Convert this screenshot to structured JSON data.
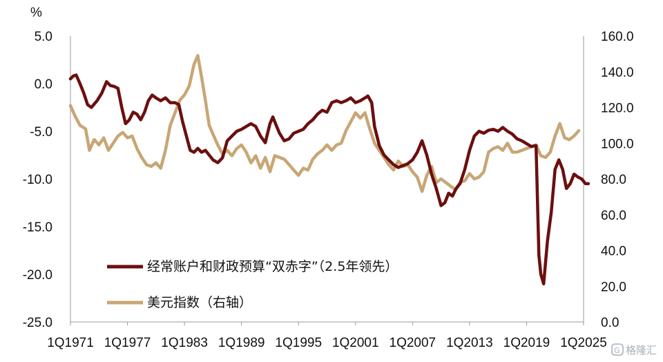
{
  "chart_data": {
    "type": "line",
    "y_unit_label": "%",
    "ylim_left": [
      -25,
      5
    ],
    "ylim_right": [
      0,
      160
    ],
    "yticks_left": [
      "5.0",
      "0.0",
      "-5.0",
      "-10.0",
      "-15.0",
      "-20.0",
      "-25.0"
    ],
    "yticks_right": [
      "160.0",
      "140.0",
      "120.0",
      "100.0",
      "80.0",
      "60.0",
      "40.0",
      "20.0",
      "0.0"
    ],
    "xlim": [
      1971.0,
      2025.0
    ],
    "xtick_labels": [
      "1Q1971",
      "1Q1977",
      "1Q1983",
      "1Q1989",
      "1Q1995",
      "1Q2001",
      "1Q2007",
      "1Q2013",
      "1Q2019",
      "1Q2025"
    ],
    "xtick_values": [
      1971,
      1977,
      1983,
      1989,
      1995,
      2001,
      2007,
      2013,
      2019,
      2025
    ],
    "legend_position": "lower-center",
    "grid": false,
    "series": [
      {
        "name": "经常账户和财政预算“双赤字”（2.5年领先）",
        "axis": "left",
        "color": "#6b0f0f",
        "x": [
          1971.0,
          1971.3,
          1971.6,
          1972.0,
          1972.4,
          1972.8,
          1973.2,
          1973.8,
          1974.3,
          1974.8,
          1975.2,
          1975.6,
          1976.0,
          1976.4,
          1976.8,
          1977.2,
          1977.6,
          1978.0,
          1978.4,
          1978.8,
          1979.2,
          1979.6,
          1980.0,
          1980.5,
          1981.0,
          1981.5,
          1982.0,
          1982.4,
          1982.8,
          1983.2,
          1983.6,
          1984.0,
          1984.4,
          1984.8,
          1985.2,
          1985.6,
          1986.0,
          1986.5,
          1987.0,
          1987.5,
          1988.0,
          1988.5,
          1989.0,
          1989.5,
          1990.0,
          1990.5,
          1991.0,
          1991.5,
          1992.0,
          1992.3,
          1992.7,
          1993.0,
          1993.5,
          1994.0,
          1994.5,
          1995.0,
          1995.5,
          1996.0,
          1996.5,
          1997.0,
          1997.5,
          1998.0,
          1998.5,
          1999.0,
          1999.5,
          2000.0,
          2000.5,
          2001.0,
          2001.5,
          2002.0,
          2002.3,
          2002.7,
          2003.0,
          2003.5,
          2004.0,
          2004.5,
          2005.0,
          2005.5,
          2006.0,
          2006.5,
          2007.0,
          2007.5,
          2008.0,
          2008.5,
          2009.0,
          2009.5,
          2010.0,
          2010.4,
          2010.8,
          2011.2,
          2011.6,
          2012.0,
          2012.5,
          2013.0,
          2013.5,
          2014.0,
          2014.5,
          2015.0,
          2015.5,
          2016.0,
          2016.5,
          2017.0,
          2017.5,
          2018.0,
          2018.5,
          2019.0,
          2019.5,
          2020.0,
          2020.3,
          2020.5,
          2020.8,
          2021.2,
          2021.6,
          2022.0,
          2022.4,
          2022.8,
          2023.2,
          2023.6,
          2024.0,
          2024.4,
          2024.8,
          2025.2,
          2025.5
        ],
        "values": [
          0.5,
          0.8,
          0.9,
          0.0,
          -1.0,
          -2.2,
          -2.5,
          -1.8,
          -1.0,
          0.2,
          -0.2,
          -0.3,
          -0.5,
          -2.5,
          -4.2,
          -3.8,
          -3.0,
          -3.2,
          -3.8,
          -3.0,
          -1.8,
          -1.2,
          -1.5,
          -1.8,
          -1.5,
          -2.0,
          -2.0,
          -2.2,
          -4.0,
          -5.5,
          -7.0,
          -7.2,
          -6.8,
          -7.2,
          -7.0,
          -7.5,
          -8.0,
          -8.3,
          -7.8,
          -6.0,
          -5.5,
          -5.0,
          -4.8,
          -4.5,
          -4.2,
          -4.5,
          -5.5,
          -6.2,
          -4.2,
          -3.5,
          -4.5,
          -5.2,
          -6.0,
          -5.8,
          -5.2,
          -5.0,
          -4.8,
          -4.2,
          -3.8,
          -3.2,
          -2.8,
          -3.0,
          -2.0,
          -1.8,
          -2.0,
          -1.8,
          -1.5,
          -2.0,
          -1.8,
          -1.5,
          -1.3,
          -2.0,
          -4.5,
          -6.5,
          -7.5,
          -8.0,
          -8.5,
          -8.8,
          -8.6,
          -8.4,
          -8.0,
          -7.2,
          -6.0,
          -7.5,
          -9.5,
          -11.0,
          -12.8,
          -12.5,
          -11.5,
          -11.8,
          -11.0,
          -10.5,
          -9.0,
          -7.0,
          -5.5,
          -5.0,
          -5.2,
          -4.9,
          -4.8,
          -5.0,
          -4.6,
          -5.0,
          -5.3,
          -5.8,
          -6.0,
          -6.3,
          -6.6,
          -6.5,
          -18.0,
          -20.0,
          -21.0,
          -16.5,
          -13.5,
          -9.0,
          -8.0,
          -9.0,
          -11.0,
          -10.5,
          -9.5,
          -9.8,
          -10.0,
          -10.5,
          -10.5
        ]
      },
      {
        "name": "美元指数（右轴）",
        "axis": "right",
        "color": "#c8a675",
        "x": [
          1971.0,
          1971.5,
          1972.0,
          1972.6,
          1973.0,
          1973.5,
          1974.0,
          1974.5,
          1975.0,
          1975.5,
          1976.0,
          1976.5,
          1977.0,
          1977.5,
          1978.0,
          1978.5,
          1979.0,
          1979.5,
          1980.0,
          1980.5,
          1981.0,
          1981.5,
          1982.0,
          1982.5,
          1983.0,
          1983.5,
          1984.0,
          1984.4,
          1984.8,
          1985.2,
          1985.6,
          1986.0,
          1986.5,
          1987.0,
          1987.5,
          1988.0,
          1988.5,
          1989.0,
          1989.5,
          1990.0,
          1990.5,
          1991.0,
          1991.5,
          1992.0,
          1992.5,
          1993.0,
          1993.5,
          1994.0,
          1994.5,
          1995.0,
          1995.5,
          1996.0,
          1996.5,
          1997.0,
          1997.5,
          1998.0,
          1998.5,
          1999.0,
          1999.5,
          2000.0,
          2000.5,
          2001.0,
          2001.5,
          2002.0,
          2002.5,
          2003.0,
          2003.5,
          2004.0,
          2004.5,
          2005.0,
          2005.5,
          2006.0,
          2006.5,
          2007.0,
          2007.5,
          2008.0,
          2008.5,
          2009.0,
          2009.5,
          2010.0,
          2010.5,
          2011.0,
          2011.5,
          2012.0,
          2012.5,
          2013.0,
          2013.5,
          2014.0,
          2014.5,
          2015.0,
          2015.5,
          2016.0,
          2016.5,
          2017.0,
          2017.5,
          2018.0,
          2018.5,
          2019.0,
          2019.5,
          2020.0,
          2020.5,
          2021.0,
          2021.5,
          2022.0,
          2022.5,
          2023.0,
          2023.5,
          2024.0,
          2024.5
        ],
        "values": [
          121,
          115,
          110,
          108,
          96,
          102,
          99,
          103,
          96,
          100,
          104,
          106,
          103,
          104,
          97,
          92,
          88,
          87,
          89,
          86,
          96,
          110,
          117,
          124,
          127,
          132,
          144,
          149,
          137,
          124,
          110,
          105,
          99,
          94,
          96,
          93,
          97,
          99,
          95,
          89,
          93,
          86,
          92,
          84,
          93,
          92,
          91,
          88,
          85,
          82,
          86,
          85,
          91,
          94,
          96,
          99,
          96,
          99,
          100,
          107,
          112,
          117,
          114,
          117,
          108,
          100,
          96,
          92,
          88,
          85,
          90,
          87,
          88,
          84,
          81,
          73,
          82,
          87,
          78,
          80,
          78,
          76,
          74,
          78,
          79,
          83,
          80,
          81,
          84,
          95,
          97,
          98,
          96,
          100,
          95,
          95,
          96,
          97,
          98,
          99,
          93,
          92,
          95,
          104,
          111,
          103,
          102,
          104,
          107
        ]
      }
    ]
  },
  "watermark": {
    "text": "格隆汇",
    "icon": "g-logo-icon"
  }
}
